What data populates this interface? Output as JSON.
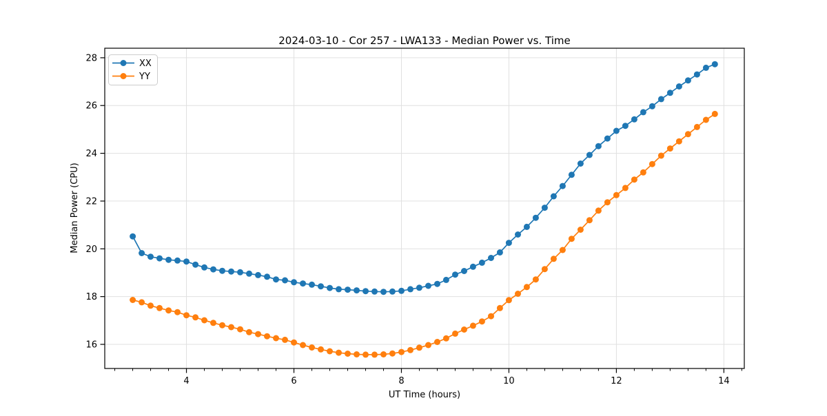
{
  "figure": {
    "background": "#ffffff",
    "grid_color": "#e0e0e0",
    "spine_color": "#000000",
    "tick_color": "#000000"
  },
  "chart_data": {
    "type": "line",
    "title": "2024-03-10 - Cor 257 - LWA133 - Median Power vs. Time",
    "xlabel": "UT Time (hours)",
    "ylabel": "Median Power (CPU)",
    "xlim": [
      2.48,
      14.38
    ],
    "ylim": [
      14.99,
      28.4
    ],
    "x_ticks": [
      4,
      6,
      8,
      10,
      12,
      14
    ],
    "y_ticks": [
      16,
      18,
      20,
      22,
      24,
      26,
      28
    ],
    "x_minor_step": 0.33333,
    "grid": true,
    "legend_position": "upper left",
    "marker": "circle",
    "x": [
      3.0,
      3.167,
      3.333,
      3.5,
      3.667,
      3.833,
      4.0,
      4.167,
      4.333,
      4.5,
      4.667,
      4.833,
      5.0,
      5.167,
      5.333,
      5.5,
      5.667,
      5.833,
      6.0,
      6.167,
      6.333,
      6.5,
      6.667,
      6.833,
      7.0,
      7.167,
      7.333,
      7.5,
      7.667,
      7.833,
      8.0,
      8.167,
      8.333,
      8.5,
      8.667,
      8.833,
      9.0,
      9.167,
      9.333,
      9.5,
      9.667,
      9.833,
      10.0,
      10.167,
      10.333,
      10.5,
      10.667,
      10.833,
      11.0,
      11.167,
      11.333,
      11.5,
      11.667,
      11.833,
      12.0,
      12.167,
      12.333,
      12.5,
      12.667,
      12.833,
      13.0,
      13.167,
      13.333,
      13.5,
      13.667,
      13.833
    ],
    "series": [
      {
        "name": "XX",
        "color": "#1f77b4",
        "values": [
          20.52,
          19.82,
          19.67,
          19.6,
          19.54,
          19.51,
          19.47,
          19.34,
          19.22,
          19.14,
          19.08,
          19.05,
          19.02,
          18.96,
          18.9,
          18.83,
          18.72,
          18.68,
          18.6,
          18.55,
          18.5,
          18.43,
          18.36,
          18.31,
          18.29,
          18.26,
          18.23,
          18.21,
          18.2,
          18.21,
          18.24,
          18.31,
          18.37,
          18.45,
          18.53,
          18.7,
          18.92,
          19.07,
          19.25,
          19.42,
          19.62,
          19.85,
          20.25,
          20.6,
          20.92,
          21.3,
          21.72,
          22.2,
          22.63,
          23.1,
          23.57,
          23.93,
          24.3,
          24.62,
          24.94,
          25.15,
          25.42,
          25.72,
          25.97,
          26.27,
          26.53,
          26.8,
          27.05,
          27.3,
          27.58,
          27.73
        ]
      },
      {
        "name": "YY",
        "color": "#ff7f0e",
        "values": [
          17.86,
          17.76,
          17.62,
          17.52,
          17.42,
          17.35,
          17.22,
          17.13,
          17.01,
          16.9,
          16.8,
          16.72,
          16.63,
          16.51,
          16.43,
          16.34,
          16.26,
          16.19,
          16.08,
          15.97,
          15.87,
          15.79,
          15.71,
          15.65,
          15.61,
          15.58,
          15.57,
          15.57,
          15.58,
          15.62,
          15.68,
          15.76,
          15.86,
          15.97,
          16.1,
          16.25,
          16.45,
          16.62,
          16.78,
          16.96,
          17.18,
          17.52,
          17.85,
          18.12,
          18.4,
          18.72,
          19.15,
          19.58,
          19.95,
          20.42,
          20.8,
          21.2,
          21.6,
          21.95,
          22.25,
          22.55,
          22.9,
          23.2,
          23.55,
          23.9,
          24.2,
          24.5,
          24.8,
          25.1,
          25.4,
          25.65
        ]
      }
    ]
  }
}
